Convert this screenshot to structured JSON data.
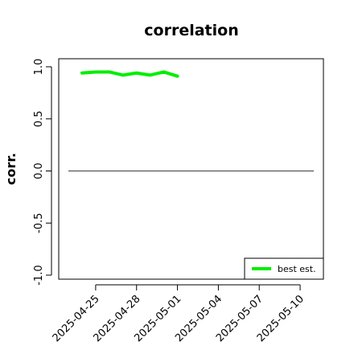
{
  "chart_data": {
    "type": "line",
    "title": "correlation",
    "xlabel": "",
    "ylabel": "corr.",
    "ylim": [
      -1.0,
      1.0
    ],
    "y_ticks": [
      -1.0,
      -0.5,
      0.0,
      0.5,
      1.0
    ],
    "y_tick_labels": [
      "-1.0",
      "-0.5",
      "0.0",
      "0.5",
      "1.0"
    ],
    "x_range": [
      "2025-04-23",
      "2025-05-11"
    ],
    "x_ticks": [
      "2025-04-25",
      "2025-04-28",
      "2025-05-01",
      "2025-05-04",
      "2025-05-07",
      "2025-05-10"
    ],
    "x_tick_labels": [
      "2025-04-25",
      "2025-04-28",
      "2025-05-01",
      "2025-05-04",
      "2025-05-07",
      "2025-05-10"
    ],
    "highlighted_tick": "2025-05-01",
    "highlight_color": "#228b22",
    "reference_line": {
      "y": 0.0,
      "x_start": "2025-04-23",
      "x_end": "2025-05-11",
      "color": "#555555"
    },
    "series": [
      {
        "name": "best est.",
        "color": "#00ee00",
        "x": [
          "2025-04-24",
          "2025-04-25",
          "2025-04-26",
          "2025-04-27",
          "2025-04-28",
          "2025-04-29",
          "2025-04-30",
          "2025-05-01"
        ],
        "y": [
          0.94,
          0.95,
          0.95,
          0.92,
          0.94,
          0.92,
          0.95,
          0.91
        ]
      }
    ],
    "legend": {
      "position": "bottom-right",
      "entries": [
        "best est."
      ]
    },
    "grid": false
  }
}
